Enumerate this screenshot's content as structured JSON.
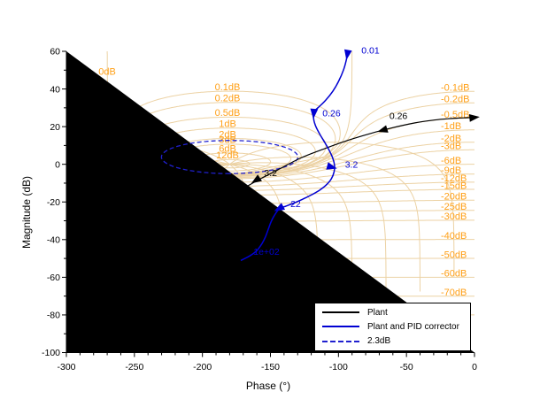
{
  "figure": {
    "bg": "#ffffff"
  },
  "axes": {
    "x": {
      "label": "Phase (°)",
      "min": -300,
      "max": 0,
      "major_tick_step": 50,
      "minor_tick_step": 10,
      "tick_labels": [
        "-300",
        "-250",
        "-200",
        "-150",
        "-100",
        "-50",
        "0"
      ]
    },
    "y": {
      "label": "Magnitude (dB)",
      "min": -100,
      "max": 60,
      "major_tick_step": 20,
      "minor_tick_step": 10,
      "tick_labels": [
        "60",
        "40",
        "20",
        "0",
        "-20",
        "-40",
        "-60",
        "-80",
        "-100"
      ]
    }
  },
  "nichols_grid": {
    "line_color": "#ecd2a4",
    "label_color": "#ffa018",
    "mag_contours_db": [
      12,
      6,
      3,
      2,
      1,
      0.5,
      0.2,
      0.1,
      0,
      -0.1,
      -0.2,
      -0.5,
      -1,
      -2,
      -3,
      -6,
      -9,
      -12,
      -15,
      -20,
      -25,
      -30,
      -40,
      -50,
      -60,
      -70,
      -80,
      -100
    ],
    "labels_positive": [
      "0.1dB",
      "0.2dB",
      "0.5dB",
      "1dB",
      "2dB",
      "3dB",
      "6dB",
      "12dB"
    ],
    "labels_positive_values": [
      0.1,
      0.2,
      0.5,
      1,
      2,
      3,
      6,
      12
    ],
    "label_zero": "0dB",
    "labels_negative": [
      "-0.1dB",
      "-0.2dB",
      "-0.5dB",
      "-1dB",
      "-2dB",
      "-3dB",
      "-6dB",
      "-9dB",
      "-12dB",
      "-15dB",
      "-20dB",
      "-25dB",
      "-30dB",
      "-40dB",
      "-50dB",
      "-60dB",
      "-70dB"
    ],
    "labels_negative_values": [
      -0.1,
      -0.2,
      -0.5,
      -1,
      -2,
      -3,
      -6,
      -9,
      -12,
      -15,
      -20,
      -25,
      -30,
      -40,
      -50,
      -60,
      -70
    ],
    "phase_contours_deg": [
      -15,
      -40,
      -65,
      -90,
      -115,
      -140,
      -165,
      -190,
      -215,
      -240,
      -265,
      -290
    ]
  },
  "chart_data": {
    "type": "line",
    "subtype": "nichols",
    "xlabel": "Phase (°)",
    "ylabel": "Magnitude (dB)",
    "xlim": [
      -300,
      0
    ],
    "ylim": [
      -100,
      60
    ],
    "grid": true,
    "legend_position": "bottom-right",
    "series": [
      {
        "name": "Plant",
        "color": "#000000",
        "style": "solid",
        "points": [
          [
            -0.7,
            24.8
          ],
          [
            -3.2,
            24.8
          ],
          [
            -6.4,
            24.7
          ],
          [
            -12.6,
            24.5
          ],
          [
            -19.5,
            24.2
          ],
          [
            -29.8,
            23.5
          ],
          [
            -43.8,
            22.0
          ],
          [
            -60.8,
            19.3
          ],
          [
            -76.3,
            16.4
          ],
          [
            -92.3,
            12.9
          ],
          [
            -109.1,
            8.6
          ],
          [
            -127.6,
            3.4
          ],
          [
            -146.2,
            -3.6
          ],
          [
            -156.5,
            -7.4
          ],
          [
            -166.0,
            -11.2
          ],
          [
            -174.3,
            -14.5
          ],
          [
            -192.6,
            -22.5
          ],
          [
            -210.1,
            -31.6
          ],
          [
            -218.7,
            -37.0
          ],
          [
            -226.9,
            -42.8
          ],
          [
            -230.0,
            -45.0
          ],
          [
            -241.0,
            -54.0
          ],
          [
            -250.8,
            -65.0
          ],
          [
            -257.6,
            -77.5
          ],
          [
            -260.5,
            -84.5
          ]
        ],
        "markers": [
          {
            "label": "",
            "phase": -0.7,
            "mag": 24.8,
            "angle": -6,
            "dx": 0,
            "dy": 0
          },
          {
            "label": "0.26",
            "phase": -67.0,
            "mag": 18.2,
            "angle": 163,
            "dx": 17,
            "dy": -16
          },
          {
            "label": "3.2",
            "phase": -160.3,
            "mag": -8.3,
            "angle": 147,
            "dx": 16,
            "dy": -8
          },
          {
            "label": "22",
            "phase": -227.8,
            "mag": -44.2,
            "angle": 130,
            "dx": 20,
            "dy": -6
          },
          {
            "label": "1e+02",
            "phase": -260.5,
            "mag": -84.5,
            "dx": 29,
            "dy": -7
          }
        ]
      },
      {
        "name": "Plant and PID corrector",
        "color": "#0000d2",
        "style": "solid",
        "points": [
          [
            -93.1,
            59.8
          ],
          [
            -94.4,
            54.8
          ],
          [
            -96.3,
            50.1
          ],
          [
            -99.6,
            44.5
          ],
          [
            -104.1,
            38.8
          ],
          [
            -109.3,
            34.1
          ],
          [
            -113.9,
            30.8
          ],
          [
            -117.8,
            28.0
          ],
          [
            -118.4,
            25.2
          ],
          [
            -117.1,
            20.9
          ],
          [
            -113.9,
            16.2
          ],
          [
            -110.0,
            11.5
          ],
          [
            -106.7,
            7.3
          ],
          [
            -104.1,
            3.1
          ],
          [
            -102.9,
            -0.5
          ],
          [
            -103.2,
            -4.0
          ],
          [
            -105.3,
            -7.8
          ],
          [
            -109.0,
            -11.0
          ],
          [
            -114.0,
            -13.8
          ],
          [
            -120.0,
            -16.3
          ],
          [
            -126.5,
            -18.6
          ],
          [
            -132.8,
            -20.6
          ],
          [
            -138.5,
            -22.2
          ],
          [
            -143.2,
            -23.5
          ],
          [
            -147.1,
            -27.1
          ],
          [
            -149.7,
            -30.8
          ],
          [
            -151.6,
            -34.6
          ],
          [
            -153.6,
            -38.4
          ],
          [
            -156.2,
            -42.1
          ],
          [
            -160.1,
            -45.9
          ],
          [
            -165.3,
            -48.7
          ],
          [
            -171.8,
            -51.1
          ]
        ],
        "markers": [
          {
            "label": "0.01",
            "phase": -93.4,
            "mag": 58.6,
            "angle": 100,
            "dx": 26,
            "dy": -4
          },
          {
            "label": "0.26",
            "phase": -118.1,
            "mag": 27.3,
            "angle": 95,
            "dx": 20,
            "dy": 0
          },
          {
            "label": "3.2",
            "phase": -105.4,
            "mag": -1.4,
            "angle": 15,
            "dx": 23,
            "dy": -3
          },
          {
            "label": "22",
            "phase": -143.2,
            "mag": -23.3,
            "angle": 152,
            "dx": 18,
            "dy": -5
          },
          {
            "label": "1e+02",
            "phase": -171.8,
            "mag": -51.1,
            "dx": 29,
            "dy": -10
          }
        ]
      },
      {
        "name": "2.3dB",
        "color": "#2020cf",
        "style": "dashed",
        "contour_db": 2.3
      }
    ],
    "legend": {
      "entries": [
        "Plant",
        "Plant and PID corrector",
        "2.3dB"
      ]
    }
  }
}
